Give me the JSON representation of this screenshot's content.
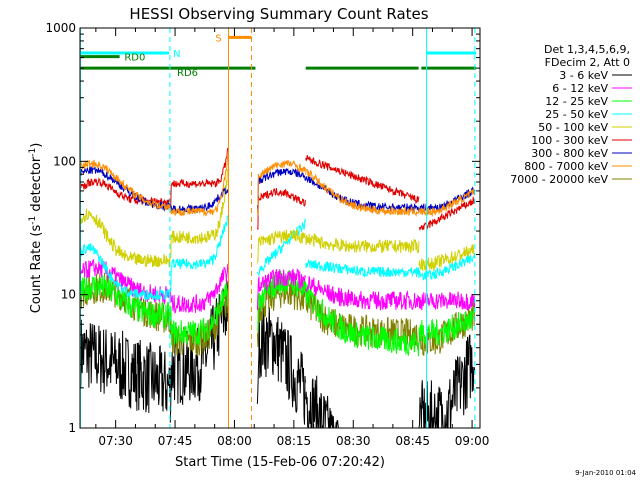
{
  "chart_data": {
    "type": "line",
    "title": "HESSI Observing Summary Count Rates",
    "xlabel": "Start Time (15-Feb-06 07:20:42)",
    "ylabel_main": "Count Rate (s",
    "ylabel_sup": "-1",
    "ylabel_mid": " detector",
    "ylabel_sup2": "-1",
    "ylabel_end": ")",
    "yscale": "log",
    "ylim": [
      1,
      1000
    ],
    "xlim_minutes": [
      441,
      542
    ],
    "x_ticks": [
      {
        "label": "07:30",
        "min": 450
      },
      {
        "label": "07:45",
        "min": 465
      },
      {
        "label": "08:00",
        "min": 480
      },
      {
        "label": "08:15",
        "min": 495
      },
      {
        "label": "08:30",
        "min": 510
      },
      {
        "label": "08:45",
        "min": 525
      },
      {
        "label": "09:00",
        "min": 540
      }
    ],
    "y_ticks": [
      {
        "label": "1",
        "v": 1
      },
      {
        "label": "10",
        "v": 10
      },
      {
        "label": "100",
        "v": 100
      },
      {
        "label": "1000",
        "v": 1000
      }
    ],
    "legend_header": [
      "Det 1,3,4,5,6,9,",
      "FDecim 2, Att 0"
    ],
    "legend_position": "right",
    "series": [
      {
        "name": "3 - 6 keV",
        "color": "#000000"
      },
      {
        "name": "6 - 12 keV",
        "color": "#ff00ff"
      },
      {
        "name": "12 - 25 keV",
        "color": "#00ff00"
      },
      {
        "name": "25 - 50 keV",
        "color": "#00ffff"
      },
      {
        "name": "50 - 100 keV",
        "color": "#d0d000"
      },
      {
        "name": "100 - 300 keV",
        "color": "#e00000"
      },
      {
        "name": "300 - 800 keV",
        "color": "#0000c0"
      },
      {
        "name": "800 - 7000 keV",
        "color": "#ff8c00"
      },
      {
        "name": "7000 - 20000 keV",
        "color": "#808000"
      }
    ],
    "segments": [
      {
        "start": 441.2,
        "end": 463.8
      },
      {
        "start": 478.6,
        "end": 479.4
      },
      {
        "start": 485.8,
        "end": 526.6
      },
      {
        "start": 526.6,
        "end": 540.7
      }
    ],
    "flags": [
      {
        "label": "N",
        "color": "#00ffff",
        "y": 650,
        "ranges": [
          [
            441,
            463.5
          ],
          [
            528.6,
            541
          ]
        ]
      },
      {
        "label": "S",
        "color": "#ff8c00",
        "y": 850,
        "ranges": [
          [
            478.5,
            484.3
          ]
        ]
      },
      {
        "label": "RD0",
        "color": "#008000",
        "y": 610,
        "ranges": [
          [
            441,
            451
          ]
        ]
      },
      {
        "label": "RD6",
        "color": "#008000",
        "y": 500,
        "ranges": [
          [
            441,
            485.3
          ],
          [
            498,
            526.5
          ],
          [
            527.2,
            541
          ]
        ]
      }
    ],
    "vertical_lines": [
      {
        "min": 441.1,
        "color": "#00ffff",
        "style": "solid"
      },
      {
        "min": 463.7,
        "color": "#00ffff",
        "style": "dashed"
      },
      {
        "min": 478.5,
        "color": "#ff8c00",
        "style": "solid"
      },
      {
        "min": 484.3,
        "color": "#ff8c00",
        "style": "dashed"
      },
      {
        "min": 528.5,
        "color": "#00ffff",
        "style": "solid"
      },
      {
        "min": 540.7,
        "color": "#00ffff",
        "style": "dashed"
      }
    ]
  },
  "timestamp": "9-Jan-2010 01:04"
}
